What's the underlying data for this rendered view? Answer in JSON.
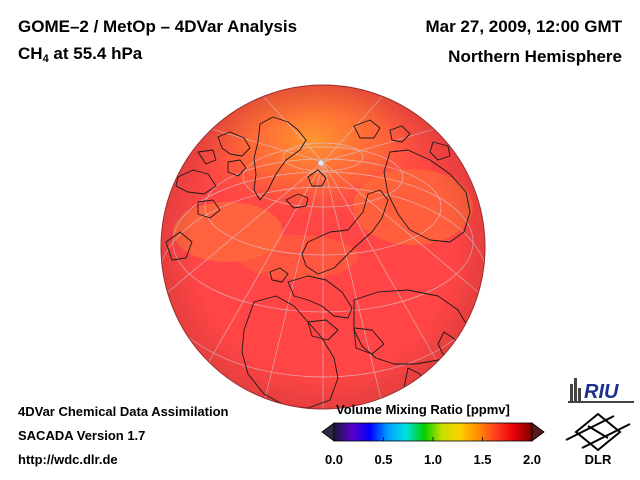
{
  "header": {
    "title": "GOME–2 / MetOp – 4DVar Analysis",
    "species": "CH",
    "species_sub": "4",
    "level": "at 55.4 hPa",
    "datetime": "Mar 27, 2009, 12:00 GMT",
    "region": "Northern Hemisphere"
  },
  "footer": {
    "line1": "4DVar Chemical Data Assimilation",
    "line2": "SACADA Version 1.7",
    "line3": "http://wdc.dlr.de"
  },
  "colorbar": {
    "label": "Volume Mixing Ratio [ppmv]",
    "min": 0.0,
    "max": 2.0,
    "ticks": [
      "0.0",
      "0.5",
      "1.0",
      "1.5",
      "2.0"
    ],
    "tick_values": [
      0.0,
      0.5,
      1.0,
      1.5,
      2.0
    ],
    "stops": [
      "#1a1a3a",
      "#5a00c8",
      "#0000ff",
      "#00a0ff",
      "#00e0e0",
      "#00d000",
      "#c8e000",
      "#ffd000",
      "#ff8c00",
      "#ff3c1e",
      "#e8000a",
      "#7a0000"
    ]
  },
  "map": {
    "projection": "orthographic",
    "center": "North Pole",
    "field": "CH4 volume mixing ratio",
    "dominant_color": "#ff4040",
    "high_polar_color": "#ff8a28"
  },
  "logos": {
    "riu": "RIU",
    "dlr": "DLR"
  }
}
